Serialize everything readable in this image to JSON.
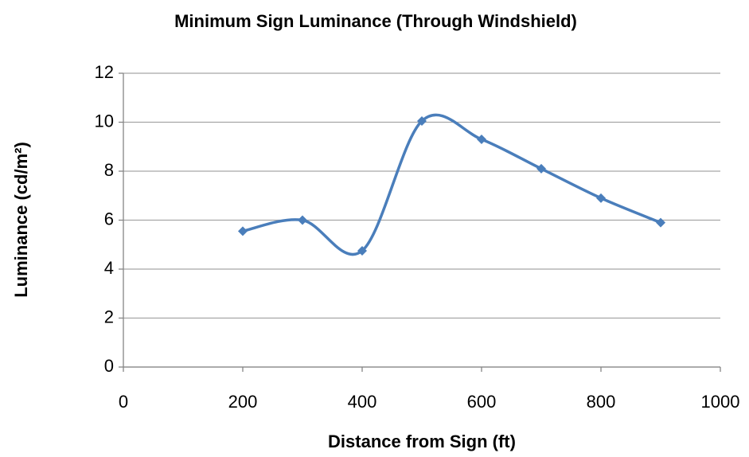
{
  "chart_data": {
    "type": "line",
    "title": "Minimum Sign Luminance (Through Windshield)",
    "x_label": "Distance from Sign (ft)",
    "y_label": "Luminance (cd/m²)",
    "x": [
      200,
      300,
      400,
      500,
      600,
      700,
      800,
      900
    ],
    "values": [
      5.55,
      6.0,
      4.75,
      10.05,
      9.3,
      8.1,
      6.9,
      5.9
    ],
    "color": "#4a7ebb",
    "smooth": true,
    "xlim": [
      0,
      1000
    ],
    "xticks": [
      0,
      200,
      400,
      600,
      800,
      1000
    ],
    "ylim": [
      0,
      12
    ],
    "yticks": [
      0,
      2,
      4,
      6,
      8,
      10,
      12
    ],
    "grid": true
  }
}
